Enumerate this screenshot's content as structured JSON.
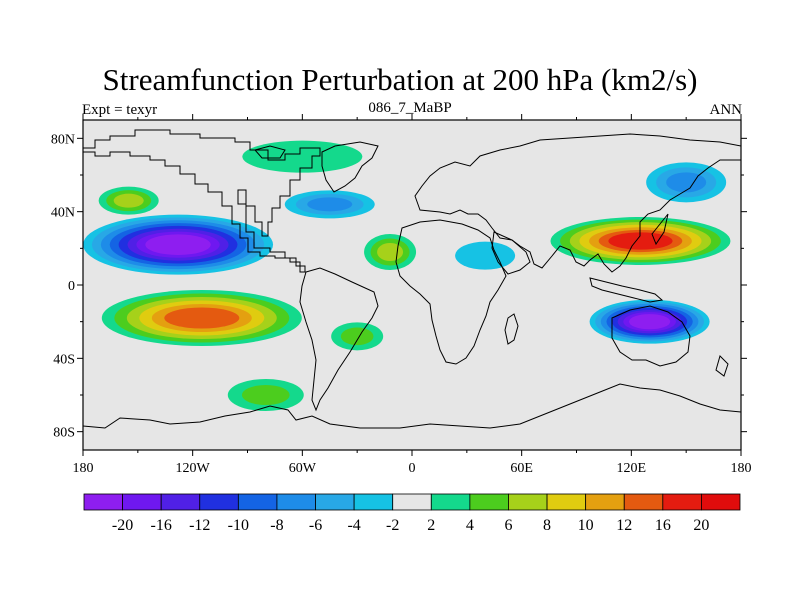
{
  "title": "Streamfunction Perturbation at 200 hPa (km2/s)",
  "left_label": "Expt = texyr",
  "center_label": "086_7_MaBP",
  "right_label": "ANN",
  "x_ticks": [
    "180",
    "120W",
    "60W",
    "0",
    "60E",
    "120E",
    "180"
  ],
  "y_ticks": [
    "80N",
    "40N",
    "0",
    "40S",
    "80S"
  ],
  "colorbar": {
    "labels": [
      "-20",
      "-16",
      "-12",
      "-10",
      "-8",
      "-6",
      "-4",
      "-2",
      "2",
      "4",
      "6",
      "8",
      "10",
      "12",
      "16",
      "20"
    ],
    "colors": [
      "#8e1ef0",
      "#6f18f0",
      "#5020e6",
      "#2030e0",
      "#1464e4",
      "#1e8ce8",
      "#28a8e6",
      "#16c2e4",
      "#e6e6e6",
      "#14d98c",
      "#4ccd1e",
      "#a6d11a",
      "#e0cc10",
      "#e4a010",
      "#e45a10",
      "#e41c10",
      "#e00c0c"
    ]
  },
  "chart_data": {
    "type": "heatmap",
    "title": "Streamfunction Perturbation at 200 hPa (km2/s)",
    "units": "km2/s",
    "level_hPa": 200,
    "experiment": "texyr",
    "case": "086_7_MaBP",
    "season": "ANN",
    "xlim": [
      -180,
      180
    ],
    "ylim": [
      -90,
      90
    ],
    "contour_levels": [
      -20,
      -16,
      -12,
      -10,
      -8,
      -6,
      -4,
      -2,
      2,
      4,
      6,
      8,
      10,
      12,
      16,
      20
    ],
    "features": [
      {
        "lon": -128,
        "lat": 22,
        "value": -20
      },
      {
        "lon": -115,
        "lat": -18,
        "value": 14
      },
      {
        "lon": 125,
        "lat": 24,
        "value": 16
      },
      {
        "lon": 130,
        "lat": -20,
        "value": -20
      },
      {
        "lon": -155,
        "lat": 46,
        "value": 6
      },
      {
        "lon": -60,
        "lat": 70,
        "value": 3
      },
      {
        "lon": -45,
        "lat": 44,
        "value": -6
      },
      {
        "lon": -12,
        "lat": 18,
        "value": 6
      },
      {
        "lon": -30,
        "lat": -28,
        "value": 4
      },
      {
        "lon": -80,
        "lat": -60,
        "value": 4
      },
      {
        "lon": 150,
        "lat": 56,
        "value": -6
      },
      {
        "lon": 40,
        "lat": 16,
        "value": -3
      }
    ]
  }
}
